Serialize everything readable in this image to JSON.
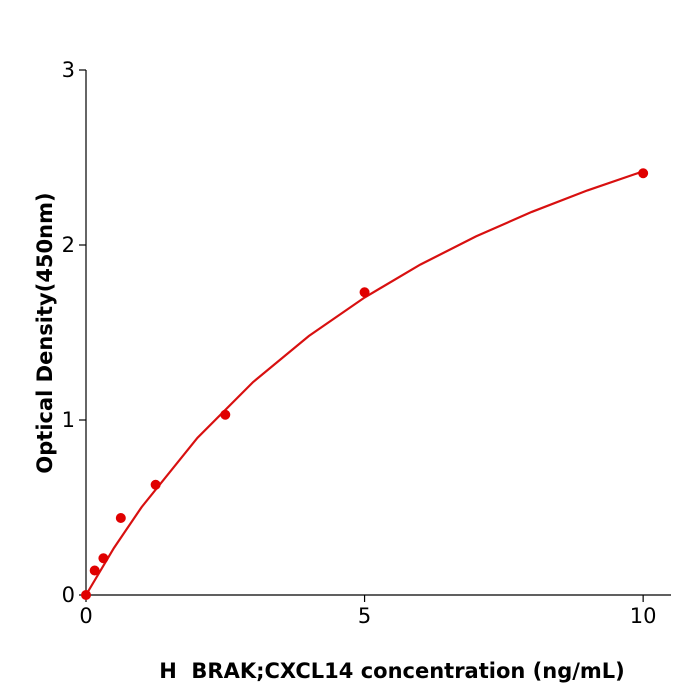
{
  "chart_data": {
    "type": "scatter",
    "x_label": "H  BRAK;CXCL14 concentration (ng/mL)",
    "y_label": "Optical Density(450nm)",
    "xlim": [
      0,
      10.5
    ],
    "xticks": [
      0,
      5,
      10
    ],
    "ylim": [
      0,
      3
    ],
    "yticks": [
      0,
      1,
      2,
      3
    ],
    "grid": false,
    "series": [
      {
        "type": "scatter",
        "color": "#e00000",
        "x": [
          0,
          0.156,
          0.3125,
          0.625,
          1.25,
          2.5,
          5,
          10
        ],
        "values": [
          0,
          0.14,
          0.21,
          0.44,
          0.63,
          1.03,
          1.73,
          2.41
        ]
      },
      {
        "type": "line",
        "color": "#d81010",
        "x": [
          0,
          0.5,
          1,
          2,
          3,
          4,
          5,
          6,
          7,
          8,
          9,
          10
        ],
        "values": [
          0,
          0.268,
          0.503,
          0.898,
          1.217,
          1.48,
          1.7,
          1.888,
          2.049,
          2.189,
          2.312,
          2.421
        ]
      }
    ]
  }
}
